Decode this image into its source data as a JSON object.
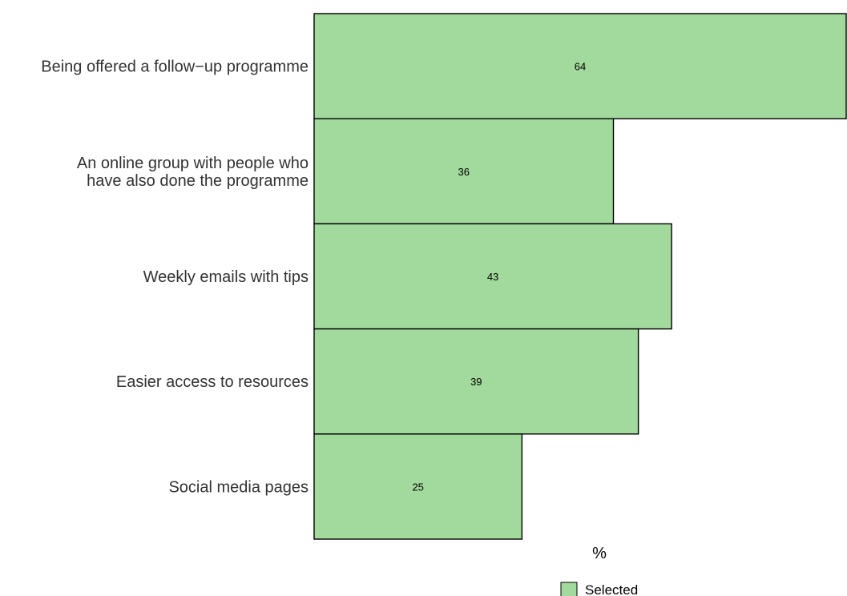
{
  "chart_data": {
    "type": "bar",
    "orientation": "horizontal",
    "categories": [
      [
        "Being offered a follow−up programme"
      ],
      [
        "An online group with people who",
        "have also done the programme"
      ],
      [
        "Weekly emails with tips"
      ],
      [
        "Easier access to resources"
      ],
      [
        "Social media pages"
      ]
    ],
    "series": [
      {
        "name": "Selected",
        "values": [
          64,
          36,
          43,
          39,
          25
        ],
        "color": "#a2d99c"
      }
    ],
    "data_labels": [
      "64",
      "36",
      "43",
      "39",
      "25"
    ],
    "xlabel": "%",
    "ylabel": "",
    "xlim": [
      0,
      64
    ],
    "grid": false,
    "legend": {
      "position": "bottom",
      "entries": [
        "Selected"
      ]
    },
    "bar_outline_color": "#000000"
  }
}
